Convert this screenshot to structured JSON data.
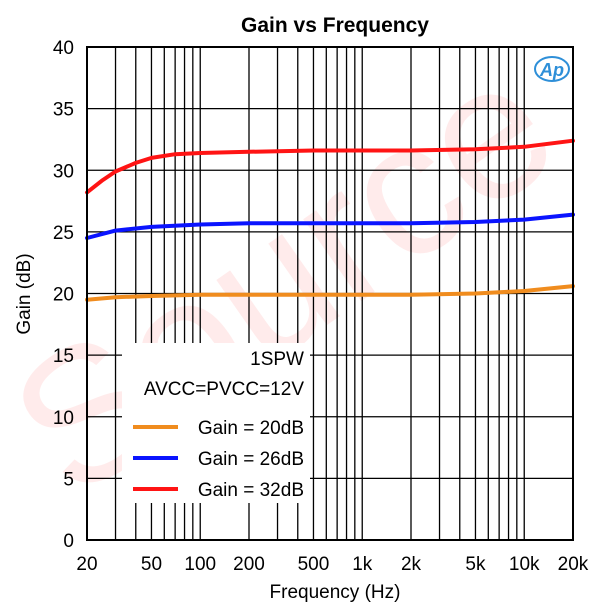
{
  "chart_data": {
    "type": "line",
    "title": "Gain vs Frequency",
    "xlabel": "Frequency (Hz)",
    "ylabel": "Gain (dB)",
    "x_scale": "log",
    "xlim": [
      20,
      20000
    ],
    "ylim": [
      0,
      40
    ],
    "grid": true,
    "x_ticks": [
      20,
      50,
      100,
      200,
      500,
      1000,
      2000,
      5000,
      10000,
      20000
    ],
    "x_tick_labels": [
      "20",
      "50",
      "100",
      "200",
      "500",
      "1k",
      "2k",
      "5k",
      "10k",
      "20k"
    ],
    "y_ticks": [
      0,
      5,
      10,
      15,
      20,
      25,
      30,
      35,
      40
    ],
    "y_tick_labels": [
      "0",
      "5",
      "10",
      "15",
      "20",
      "25",
      "30",
      "35",
      "40"
    ],
    "annotations": [
      "1SPW",
      "AVCC=PVCC=12V"
    ],
    "logo_text": "Ap",
    "watermark_text": "Source",
    "legend_position": "bottom-center",
    "series": [
      {
        "name": "Gain = 20dB",
        "color": "#F08C1E",
        "x": [
          20,
          30,
          50,
          100,
          200,
          500,
          1000,
          2000,
          5000,
          10000,
          20000
        ],
        "y": [
          19.5,
          19.7,
          19.8,
          19.9,
          19.9,
          19.9,
          19.9,
          19.9,
          20.0,
          20.2,
          20.6
        ]
      },
      {
        "name": "Gain = 26dB",
        "color": "#0A14FF",
        "x": [
          20,
          30,
          50,
          100,
          200,
          500,
          1000,
          2000,
          5000,
          10000,
          20000
        ],
        "y": [
          24.5,
          25.1,
          25.4,
          25.6,
          25.7,
          25.7,
          25.7,
          25.7,
          25.8,
          26.0,
          26.4
        ]
      },
      {
        "name": "Gain = 32dB",
        "color": "#FF1414",
        "x": [
          20,
          25,
          30,
          40,
          50,
          70,
          100,
          200,
          500,
          1000,
          2000,
          5000,
          10000,
          20000
        ],
        "y": [
          28.2,
          29.2,
          29.9,
          30.6,
          31.0,
          31.3,
          31.4,
          31.5,
          31.6,
          31.6,
          31.6,
          31.7,
          31.9,
          32.4
        ]
      }
    ]
  },
  "colors": {
    "axis": "#000000",
    "logo": "#2E8FD8",
    "watermark": "#ff0000"
  }
}
